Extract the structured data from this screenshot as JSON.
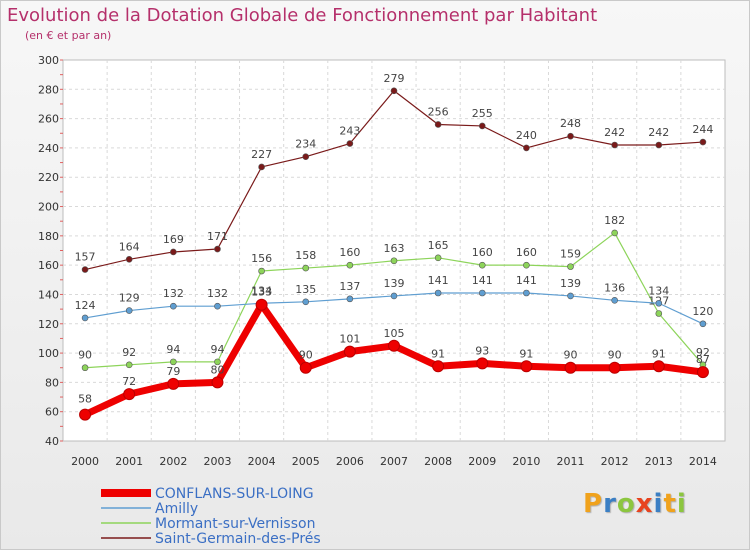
{
  "chart_data": {
    "type": "line",
    "title": "Evolution de la Dotation Globale de Fonctionnement par Habitant",
    "subtitle": "(en € et par an)",
    "xlabel": "",
    "ylabel": "",
    "categories": [
      "2000",
      "2001",
      "2002",
      "2003",
      "2004",
      "2005",
      "2006",
      "2007",
      "2008",
      "2009",
      "2010",
      "2011",
      "2012",
      "2013",
      "2014"
    ],
    "ylim": [
      40,
      300
    ],
    "yticks": [
      40,
      60,
      80,
      100,
      120,
      140,
      160,
      180,
      200,
      220,
      240,
      260,
      280,
      300
    ],
    "grid": true,
    "legend_position": "bottom-left",
    "series": [
      {
        "name": "Saint-Germain-des-Prés",
        "color": "#7a1a1a",
        "values": [
          157,
          164,
          169,
          171,
          227,
          234,
          243,
          279,
          256,
          255,
          240,
          248,
          242,
          242,
          244
        ]
      },
      {
        "name": "Mormant-sur-Vernisson",
        "color": "#8dd45a",
        "values": [
          90,
          92,
          94,
          94,
          156,
          158,
          160,
          163,
          165,
          160,
          160,
          159,
          182,
          127,
          92
        ]
      },
      {
        "name": "Amilly",
        "color": "#5f9ed1",
        "values": [
          124,
          129,
          132,
          132,
          134,
          135,
          137,
          139,
          141,
          141,
          141,
          139,
          136,
          134,
          120
        ]
      },
      {
        "name": "CONFLANS-SUR-LOING",
        "color": "#ee0000",
        "values": [
          58,
          72,
          79,
          80,
          133,
          90,
          101,
          105,
          91,
          93,
          91,
          90,
          90,
          91,
          87
        ]
      }
    ],
    "legend_order": [
      "CONFLANS-SUR-LOING",
      "Amilly",
      "Mormant-sur-Vernisson",
      "Saint-Germain-des-Prés"
    ]
  },
  "logo": {
    "letters": [
      "P",
      "r",
      "o",
      "x",
      "i",
      "t",
      "i"
    ],
    "colors": [
      "#f0a21c",
      "#3b7fc4",
      "#8cc63f",
      "#e8431f",
      "#3b7fc4",
      "#f0a21c",
      "#8cc63f"
    ]
  }
}
